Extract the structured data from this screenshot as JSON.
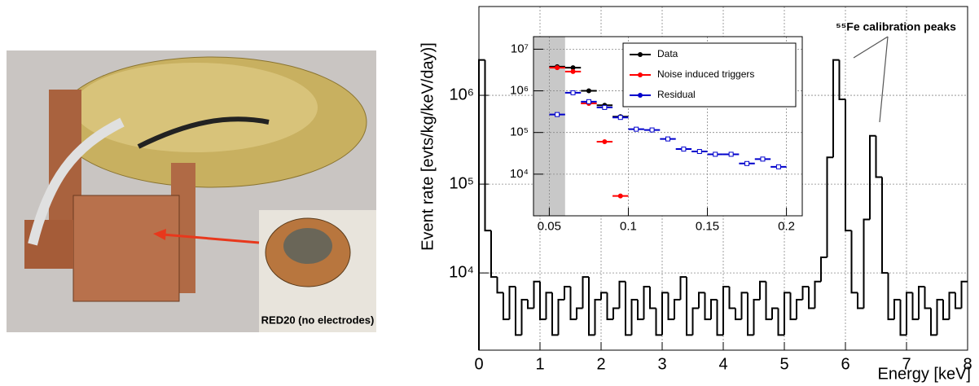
{
  "photo": {
    "caption": "RED20 (no electrodes)"
  },
  "chart_data": [
    {
      "type": "histogram",
      "x_label": "Energy [keV]",
      "y_label": "Event rate [evts/kg/keV/day)]",
      "annotation": "⁵⁵Fe calibration peaks",
      "log_y": true,
      "grid": true,
      "color": "#000000",
      "xlim": [
        0,
        8
      ],
      "xticks": [
        0,
        1,
        2,
        3,
        4,
        5,
        6,
        7,
        8
      ],
      "ylim": [
        1350,
        10000000
      ],
      "yticks": [
        {
          "value": 10000,
          "label": "10⁴"
        },
        {
          "value": 100000,
          "label": "10⁵"
        },
        {
          "value": 1000000,
          "label": "10⁶"
        }
      ],
      "bins": [
        0,
        0.1,
        0.2,
        0.3,
        0.4,
        0.5,
        0.6,
        0.7,
        0.8,
        0.9,
        1,
        1.1,
        1.2,
        1.3,
        1.4,
        1.5,
        1.6,
        1.7,
        1.8,
        1.9,
        2,
        2.1,
        2.2,
        2.3,
        2.4,
        2.5,
        2.6,
        2.7,
        2.8,
        2.9,
        3,
        3.1,
        3.2,
        3.3,
        3.4,
        3.5,
        3.6,
        3.7,
        3.8,
        3.9,
        4,
        4.1,
        4.2,
        4.3,
        4.4,
        4.5,
        4.6,
        4.7,
        4.8,
        4.9,
        5,
        5.1,
        5.2,
        5.3,
        5.4,
        5.5,
        5.6,
        5.7,
        5.8,
        5.9,
        6,
        6.1,
        6.2,
        6.3,
        6.4,
        6.5,
        6.6,
        6.7,
        6.8,
        6.9,
        7,
        7.1,
        7.2,
        7.3,
        7.4,
        7.5,
        7.6,
        7.7,
        7.8,
        7.9,
        8
      ],
      "values": [
        2500000,
        30000,
        9000,
        6000,
        3000,
        7000,
        2000,
        5000,
        4000,
        8000,
        3000,
        6000,
        2000,
        5000,
        7000,
        3000,
        4000,
        9000,
        2000,
        5000,
        6000,
        3000,
        4000,
        8000,
        2000,
        5000,
        3000,
        7000,
        4000,
        2000,
        6000,
        3000,
        5000,
        9000,
        2000,
        4000,
        6000,
        3000,
        5000,
        2000,
        7000,
        4000,
        3000,
        6000,
        2000,
        5000,
        8000,
        3000,
        4000,
        2000,
        6000,
        3000,
        5000,
        7000,
        4000,
        8000,
        15000,
        200000,
        2500000,
        900000,
        30000,
        6000,
        4000,
        40000,
        350000,
        120000,
        10000,
        3000,
        5000,
        2000,
        6000,
        3000,
        7000,
        4000,
        2000,
        5000,
        3000,
        6000,
        4000,
        8000
      ]
    },
    {
      "type": "scatter",
      "log_y": true,
      "grid": true,
      "legend": "top-right",
      "shaded_xrange": [
        0.04,
        0.06
      ],
      "shade_color": "#c8c8c8",
      "xlim": [
        0.04,
        0.21
      ],
      "xticks": [
        0.05,
        0.1,
        0.15,
        0.2
      ],
      "ylim": [
        1000,
        20000000
      ],
      "yticks": [
        {
          "value": 10000,
          "label": "10⁴"
        },
        {
          "value": 100000,
          "label": "10⁵"
        },
        {
          "value": 1000000,
          "label": "10⁶"
        },
        {
          "value": 10000000,
          "label": "10⁷"
        }
      ],
      "x": [
        0.055,
        0.065,
        0.075,
        0.085,
        0.095,
        0.105,
        0.115,
        0.125,
        0.135,
        0.145,
        0.155,
        0.165,
        0.175,
        0.185,
        0.195
      ],
      "series": [
        {
          "name": "Data",
          "color": "#000000",
          "values": [
            3800000,
            3600000,
            1000000,
            450000,
            240000,
            null,
            null,
            null,
            null,
            null,
            null,
            null,
            null,
            null,
            null
          ]
        },
        {
          "name": "Noise induced triggers",
          "color": "#ff0000",
          "values": [
            3600000,
            2900000,
            500000,
            60000,
            3000,
            null,
            null,
            null,
            null,
            null,
            null,
            null,
            null,
            null,
            null
          ]
        },
        {
          "name": "Residual",
          "color": "#0000cc",
          "values": [
            270000,
            900000,
            550000,
            400000,
            230000,
            120000,
            115000,
            70000,
            40000,
            35000,
            30000,
            30000,
            18000,
            23000,
            15000
          ]
        }
      ]
    }
  ]
}
